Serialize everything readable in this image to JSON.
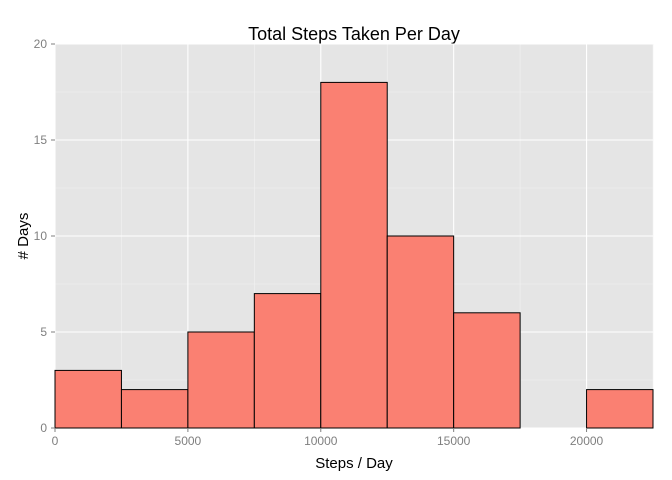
{
  "chart_data": {
    "type": "bar",
    "title": "Total Steps Taken Per Day",
    "xlabel": "Steps / Day",
    "ylabel": "# Days",
    "bin_width": 2500,
    "bins": [
      {
        "start": 0,
        "end": 2500,
        "count": 3
      },
      {
        "start": 2500,
        "end": 5000,
        "count": 2
      },
      {
        "start": 5000,
        "end": 7500,
        "count": 5
      },
      {
        "start": 7500,
        "end": 10000,
        "count": 7
      },
      {
        "start": 10000,
        "end": 12500,
        "count": 18
      },
      {
        "start": 12500,
        "end": 15000,
        "count": 10
      },
      {
        "start": 15000,
        "end": 17500,
        "count": 6
      },
      {
        "start": 17500,
        "end": 20000,
        "count": 0
      },
      {
        "start": 20000,
        "end": 22500,
        "count": 2
      }
    ],
    "xlim": [
      0,
      22500
    ],
    "ylim": [
      0,
      20
    ],
    "x_ticks": [
      "0",
      "5000",
      "10000",
      "15000",
      "20000"
    ],
    "y_ticks": [
      "0",
      "5",
      "10",
      "15",
      "20"
    ],
    "grid": true,
    "legend": "none",
    "colors": {
      "bar_fill": "#fa8072",
      "bar_border": "#000000",
      "panel_background": "#e5e5e5",
      "grid": "#ffffff"
    }
  }
}
